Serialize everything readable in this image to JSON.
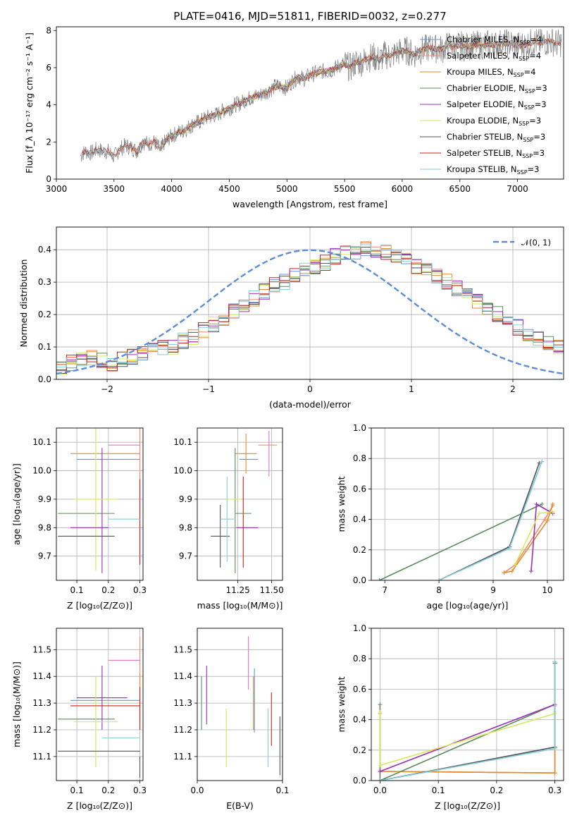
{
  "figure": {
    "title": "PLATE=0416, MJD=51811, FIBERID=0032, z=0.277"
  },
  "colors": {
    "Chabrier MILES": "#6b93d6",
    "Salpeter MILES": "#f28e6e",
    "Kroupa MILES": "#e38b28",
    "Chabrier ELODIE": "#5c8a5c",
    "Salpeter ELODIE": "#9b30b5",
    "Kroupa ELODIE": "#d7e85a",
    "Chabrier STELIB": "#555555",
    "Salpeter STELIB": "#cc1f1f",
    "Kroupa STELIB": "#87ced8",
    "data": "#808080",
    "normal": "#5b8ed6",
    "pink": "#e377c2"
  },
  "chart_data": [
    {
      "id": "spectrum",
      "type": "line",
      "title": "PLATE=0416, MJD=51811, FIBERID=0032, z=0.277",
      "xlabel": "wavelength [Angstrom, rest frame]",
      "ylabel": "Flux [f_λ 10^-17 erg cm^-2 s^-1 A^-1]",
      "xlim": [
        3000,
        7400
      ],
      "ylim": [
        0,
        8.2
      ],
      "xticks": [
        "3000",
        "3500",
        "4000",
        "4500",
        "5000",
        "5500",
        "6000",
        "6500",
        "7000"
      ],
      "yticks": [
        "0",
        "2",
        "4",
        "6",
        "8"
      ],
      "grid": false,
      "legend_position": "upper-right",
      "legend": [
        {
          "label": "Chabrier MILES, N",
          "sub": "SSP",
          "suffix": "=4"
        },
        {
          "label": "Salpeter MILES, N",
          "sub": "SSP",
          "suffix": "=4"
        },
        {
          "label": "Kroupa MILES, N",
          "sub": "SSP",
          "suffix": "=4"
        },
        {
          "label": "Chabrier ELODIE, N",
          "sub": "SSP",
          "suffix": "=3"
        },
        {
          "label": "Salpeter ELODIE, N",
          "sub": "SSP",
          "suffix": "=3"
        },
        {
          "label": "Kroupa ELODIE, N",
          "sub": "SSP",
          "suffix": "=3"
        },
        {
          "label": "Chabrier STELIB, N",
          "sub": "SSP",
          "suffix": "=3"
        },
        {
          "label": "Salpeter STELIB, N",
          "sub": "SSP",
          "suffix": "=3"
        },
        {
          "label": "Kroupa STELIB, N",
          "sub": "SSP",
          "suffix": "=3"
        }
      ],
      "data_x": [
        3200,
        3250,
        3300,
        3350,
        3400,
        3450,
        3500,
        3550,
        3600,
        3650,
        3700,
        3750,
        3800,
        3850,
        3900,
        3950,
        4000,
        4050,
        4100,
        4150,
        4200,
        4250,
        4300,
        4350,
        4400,
        4450,
        4500,
        4550,
        4600,
        4650,
        4700,
        4750,
        4800,
        4850,
        4900,
        4950,
        5000,
        5050,
        5100,
        5150,
        5200,
        5250,
        5300,
        5350,
        5400,
        5450,
        5500,
        5550,
        5600,
        5650,
        5700,
        5750,
        5800,
        5850,
        5900,
        5950,
        6000,
        6050,
        6100,
        6150,
        6200,
        6250,
        6300,
        6350,
        6400,
        6450,
        6500,
        6550,
        6600,
        6650,
        6700,
        6750,
        6800,
        6850,
        6900,
        6950,
        7000,
        7050,
        7100,
        7150,
        7200,
        7250,
        7300,
        7350,
        7400
      ],
      "data_y": [
        1.2,
        1.5,
        1.4,
        1.6,
        1.5,
        1.5,
        1.2,
        1.6,
        1.8,
        1.7,
        1.5,
        2.0,
        1.9,
        2.0,
        1.6,
        2.1,
        2.3,
        2.5,
        2.6,
        2.8,
        3.0,
        3.1,
        3.3,
        3.4,
        3.5,
        3.7,
        3.8,
        4.0,
        4.1,
        4.3,
        4.4,
        4.5,
        4.6,
        4.8,
        5.0,
        5.0,
        4.9,
        5.3,
        5.5,
        5.4,
        5.6,
        5.7,
        5.8,
        5.8,
        5.9,
        6.1,
        6.2,
        6.0,
        6.3,
        6.3,
        6.5,
        6.6,
        6.4,
        6.7,
        6.6,
        6.8,
        6.9,
        6.9,
        6.7,
        6.9,
        7.0,
        7.1,
        7.0,
        7.0,
        7.2,
        7.1,
        7.2,
        7.1,
        7.2,
        7.2,
        7.2,
        7.3,
        7.2,
        7.3,
        7.3,
        7.3,
        7.2,
        7.2,
        7.3,
        7.4,
        7.3,
        7.4,
        7.4,
        7.3,
        7.4
      ]
    },
    {
      "id": "residuals",
      "type": "line",
      "xlabel": "(data-model)/error",
      "ylabel": "Normed distribution",
      "xlim": [
        -2.5,
        2.5
      ],
      "ylim": [
        0,
        0.47
      ],
      "xticks": [
        "−2",
        "−1",
        "0",
        "1",
        "2"
      ],
      "yticks": [
        "0.0",
        "0.1",
        "0.2",
        "0.3",
        "0.4"
      ],
      "grid": true,
      "legend_position": "upper-right",
      "legend_label": "𝒩(0, 1)",
      "bin_width": 0.1,
      "bin_start": -2.5,
      "hist_values": [
        0.04,
        0.05,
        0.06,
        0.07,
        0.06,
        0.05,
        0.06,
        0.07,
        0.08,
        0.09,
        0.1,
        0.1,
        0.12,
        0.13,
        0.15,
        0.17,
        0.19,
        0.21,
        0.23,
        0.25,
        0.27,
        0.29,
        0.3,
        0.32,
        0.34,
        0.35,
        0.36,
        0.38,
        0.39,
        0.39,
        0.4,
        0.39,
        0.39,
        0.38,
        0.37,
        0.35,
        0.34,
        0.32,
        0.3,
        0.28,
        0.26,
        0.24,
        0.22,
        0.2,
        0.18,
        0.16,
        0.14,
        0.13,
        0.11,
        0.1,
        0.09
      ]
    },
    {
      "id": "age-vs-Z",
      "type": "scatter",
      "xlabel": "Z [log10(Z/Z⊙)]",
      "ylabel": "age [log10(age/yr)]",
      "xlim": [
        0.035,
        0.31
      ],
      "ylim": [
        9.615,
        10.15
      ],
      "xticks": [
        "0.1",
        "0.2",
        "0.3"
      ],
      "yticks": [
        "9.7",
        "9.8",
        "9.9",
        "10.0",
        "10.1"
      ],
      "grid": true,
      "points": [
        {
          "series": "Chabrier MILES",
          "x": 0.2,
          "y": 10.04,
          "xerr": 0.1,
          "yerr": 0.0
        },
        {
          "series": "Salpeter MILES",
          "x": 0.3,
          "y": 10.05,
          "xerr": 0.0,
          "yerr": 0.1
        },
        {
          "series": "Kroupa MILES",
          "x": 0.19,
          "y": 10.06,
          "xerr": 0.11,
          "yerr": 0.0
        },
        {
          "series": "Chabrier ELODIE",
          "x": 0.13,
          "y": 9.85,
          "xerr": 0.09,
          "yerr": 0.0
        },
        {
          "series": "Salpeter ELODIE",
          "x": 0.18,
          "y": 9.86,
          "xerr": 0.0,
          "yerr": 0.22
        },
        {
          "series": "Kroupa ELODIE",
          "x": 0.16,
          "y": 9.9,
          "xerr": 0.07,
          "yerr": 0.25
        },
        {
          "series": "Chabrier STELIB",
          "x": 0.13,
          "y": 9.77,
          "xerr": 0.09,
          "yerr": 0.0
        },
        {
          "series": "Salpeter STELIB",
          "x": 0.3,
          "y": 9.82,
          "xerr": 0.0,
          "yerr": 0.15
        },
        {
          "series": "Kroupa STELIB",
          "x": 0.25,
          "y": 9.83,
          "xerr": 0.05,
          "yerr": 0.0
        },
        {
          "series": "Salpeter ELODIE",
          "x": 0.14,
          "y": 9.8,
          "xerr": 0.06,
          "yerr": 0.0
        },
        {
          "series": "pink",
          "x": 0.25,
          "y": 10.09,
          "xerr": 0.05,
          "yerr": 0.0
        }
      ]
    },
    {
      "id": "age-vs-mass",
      "type": "scatter",
      "xlabel": "mass [log10(M/M⊙)]",
      "ylabel": "",
      "xlim": [
        10.95,
        11.58
      ],
      "ylim": [
        9.615,
        10.15
      ],
      "xticks": [
        "11.25",
        "11.50"
      ],
      "yticks": [
        "9.7",
        "9.8",
        "9.9",
        "10.0",
        "10.1"
      ],
      "grid": true,
      "points": [
        {
          "series": "Chabrier MILES",
          "x": 11.33,
          "y": 10.04,
          "xerr": 0.07,
          "yerr": 0.0
        },
        {
          "series": "Salpeter MILES",
          "x": 11.47,
          "y": 10.09,
          "xerr": 0.07,
          "yerr": 0.0
        },
        {
          "series": "Kroupa MILES",
          "x": 11.31,
          "y": 10.06,
          "xerr": 0.08,
          "yerr": 0.07
        },
        {
          "series": "Chabrier ELODIE",
          "x": 11.23,
          "y": 9.86,
          "xerr": 0.0,
          "yerr": 0.22
        },
        {
          "series": "Salpeter ELODIE",
          "x": 11.32,
          "y": 9.8,
          "xerr": 0.08,
          "yerr": 0.0
        },
        {
          "series": "Kroupa ELODIE",
          "x": 11.22,
          "y": 9.9,
          "xerr": 0.05,
          "yerr": 0.0
        },
        {
          "series": "Chabrier STELIB",
          "x": 11.12,
          "y": 9.77,
          "xerr": 0.07,
          "yerr": 0.11
        },
        {
          "series": "Salpeter STELIB",
          "x": 11.29,
          "y": 9.82,
          "xerr": 0.0,
          "yerr": 0.16
        },
        {
          "series": "Kroupa STELIB",
          "x": 11.17,
          "y": 9.83,
          "xerr": 0.05,
          "yerr": 0.15
        },
        {
          "series": "Chabrier ELODIE",
          "x": 11.29,
          "y": 9.85,
          "xerr": 0.06,
          "yerr": 0.0
        },
        {
          "series": "pink",
          "x": 11.48,
          "y": 10.06,
          "xerr": 0.0,
          "yerr": 0.08
        }
      ]
    },
    {
      "id": "weight-vs-age",
      "type": "line",
      "xlabel": "age [log10(age/yr)]",
      "ylabel": "mass weight",
      "xlim": [
        6.75,
        10.3
      ],
      "ylim": [
        0,
        1
      ],
      "xticks": [
        "7",
        "8",
        "9",
        "10"
      ],
      "yticks": [
        "0.0",
        "0.2",
        "0.4",
        "0.6",
        "0.8",
        "1.0"
      ],
      "grid": true,
      "series": [
        {
          "name": "Chabrier MILES",
          "x": [
            8.0,
            9.3,
            9.9
          ],
          "y": [
            0.0,
            0.22,
            0.78
          ]
        },
        {
          "name": "Salpeter MILES",
          "x": [
            9.2,
            9.4,
            9.95,
            10.1
          ],
          "y": [
            0.05,
            0.1,
            0.4,
            0.49
          ]
        },
        {
          "name": "Kroupa MILES",
          "x": [
            9.2,
            9.35,
            10.0,
            10.1
          ],
          "y": [
            0.05,
            0.06,
            0.39,
            0.5
          ]
        },
        {
          "name": "Chabrier ELODIE",
          "x": [
            6.9,
            9.9
          ],
          "y": [
            0.0,
            0.5
          ]
        },
        {
          "name": "Salpeter ELODIE",
          "x": [
            9.7,
            9.8,
            10.1
          ],
          "y": [
            0.06,
            0.5,
            0.44
          ]
        },
        {
          "name": "Kroupa ELODIE",
          "x": [
            9.4,
            9.85,
            10.1
          ],
          "y": [
            0.1,
            0.44,
            0.45
          ]
        },
        {
          "name": "Chabrier STELIB",
          "x": [
            8.0,
            9.3,
            9.85
          ],
          "y": [
            0.0,
            0.22,
            0.77
          ]
        },
        {
          "name": "Kroupa STELIB",
          "x": [
            8.0,
            9.3,
            9.9
          ],
          "y": [
            0.0,
            0.21,
            0.78
          ]
        }
      ]
    },
    {
      "id": "mass-vs-Z",
      "type": "scatter",
      "xlabel": "Z [log10(Z/Z⊙)]",
      "ylabel": "mass [log10(M/M⊙)]",
      "xlim": [
        0.035,
        0.31
      ],
      "ylim": [
        11.01,
        11.58
      ],
      "xticks": [
        "0.1",
        "0.2",
        "0.3"
      ],
      "yticks": [
        "11.1",
        "11.2",
        "11.3",
        "11.4",
        "11.5"
      ],
      "grid": true,
      "points": [
        {
          "series": "Chabrier MILES",
          "x": 0.19,
          "y": 11.31,
          "xerr": 0.11,
          "yerr": 0.0
        },
        {
          "series": "Salpeter MILES",
          "x": 0.3,
          "y": 11.45,
          "xerr": 0.0,
          "yerr": 0.1
        },
        {
          "series": "Kroupa MILES",
          "x": 0.3,
          "y": 11.31,
          "xerr": 0.0,
          "yerr": 0.1
        },
        {
          "series": "Chabrier ELODIE",
          "x": 0.13,
          "y": 11.24,
          "xerr": 0.09,
          "yerr": 0.0
        },
        {
          "series": "Salpeter ELODIE",
          "x": 0.18,
          "y": 11.32,
          "xerr": 0.08,
          "yerr": 0.12
        },
        {
          "series": "Kroupa ELODIE",
          "x": 0.16,
          "y": 11.23,
          "xerr": 0.07,
          "yerr": 0.17
        },
        {
          "series": "Chabrier STELIB",
          "x": 0.17,
          "y": 11.12,
          "xerr": 0.13,
          "yerr": 0.0
        },
        {
          "series": "Salpeter STELIB",
          "x": 0.19,
          "y": 11.29,
          "xerr": 0.11,
          "yerr": 0.0
        },
        {
          "series": "Kroupa STELIB",
          "x": 0.24,
          "y": 11.17,
          "xerr": 0.06,
          "yerr": 0.0
        },
        {
          "series": "Salpeter STELIB",
          "x": 0.3,
          "y": 11.28,
          "xerr": 0.0,
          "yerr": 0.08
        },
        {
          "series": "pink",
          "x": 0.25,
          "y": 11.46,
          "xerr": 0.05,
          "yerr": 0.0
        },
        {
          "series": "Chabrier STELIB",
          "x": 0.3,
          "y": 11.06,
          "xerr": 0.0,
          "yerr": 0.04
        }
      ]
    },
    {
      "id": "mass-vs-EBV",
      "type": "scatter",
      "xlabel": "E(B-V)",
      "ylabel": "",
      "xlim": [
        0,
        0.1
      ],
      "ylim": [
        11.01,
        11.58
      ],
      "xticks": [
        "0.0",
        "0.1"
      ],
      "yticks": [
        "11.1",
        "11.2",
        "11.3",
        "11.4",
        "11.5"
      ],
      "grid": true,
      "points": [
        {
          "series": "Chabrier ELODIE",
          "x": 0.005,
          "y": 11.3,
          "xerr": 0,
          "yerr": 0.1
        },
        {
          "series": "Salpeter ELODIE",
          "x": 0.011,
          "y": 11.33,
          "xerr": 0,
          "yerr": 0.11
        },
        {
          "series": "Kroupa ELODIE",
          "x": 0.034,
          "y": 11.17,
          "xerr": 0,
          "yerr": 0.11
        },
        {
          "series": "pink",
          "x": 0.06,
          "y": 11.45,
          "xerr": 0,
          "yerr": 0.1
        },
        {
          "series": "Chabrier MILES",
          "x": 0.067,
          "y": 11.31,
          "xerr": 0,
          "yerr": 0.12
        },
        {
          "series": "Kroupa MILES",
          "x": 0.066,
          "y": 11.3,
          "xerr": 0,
          "yerr": 0.1
        },
        {
          "series": "Kroupa STELIB",
          "x": 0.083,
          "y": 11.17,
          "xerr": 0,
          "yerr": 0.11
        },
        {
          "series": "Salpeter STELIB",
          "x": 0.087,
          "y": 11.24,
          "xerr": 0,
          "yerr": 0.1
        },
        {
          "series": "Chabrier STELIB",
          "x": 0.097,
          "y": 11.14,
          "xerr": 0,
          "yerr": 0.11
        }
      ]
    },
    {
      "id": "weight-vs-Z",
      "type": "line",
      "xlabel": "Z [log10(Z/Z⊙)]",
      "ylabel": "mass weight",
      "xlim": [
        -0.015,
        0.315
      ],
      "ylim": [
        0,
        1
      ],
      "xticks": [
        "0.0",
        "0.1",
        "0.2",
        "0.3"
      ],
      "yticks": [
        "0.0",
        "0.2",
        "0.4",
        "0.6",
        "0.8",
        "1.0"
      ],
      "grid": true,
      "series": [
        {
          "name": "Chabrier MILES",
          "x": [
            0.0,
            0.3,
            0.3
          ],
          "y": [
            0.0,
            0.22,
            0.78
          ]
        },
        {
          "name": "Salpeter MILES",
          "x": [
            0.0,
            0.0,
            0.3,
            0.3
          ],
          "y": [
            0.44,
            0.06,
            0.05,
            0.49
          ]
        },
        {
          "name": "Kroupa MILES",
          "x": [
            0.0,
            0.3,
            0.3
          ],
          "y": [
            0.06,
            0.05,
            0.5
          ]
        },
        {
          "name": "Chabrier ELODIE",
          "x": [
            0.0,
            0.0,
            0.3
          ],
          "y": [
            0.5,
            0.0,
            0.5
          ]
        },
        {
          "name": "Salpeter ELODIE",
          "x": [
            0.0,
            0.3,
            0.3
          ],
          "y": [
            0.06,
            0.5,
            0.44
          ]
        },
        {
          "name": "Kroupa ELODIE",
          "x": [
            0.0,
            0.0,
            0.3,
            0.3
          ],
          "y": [
            0.45,
            0.1,
            0.44,
            0.45
          ]
        },
        {
          "name": "Chabrier STELIB",
          "x": [
            0.0,
            0.3,
            0.3
          ],
          "y": [
            0.0,
            0.22,
            0.77
          ]
        },
        {
          "name": "Kroupa STELIB",
          "x": [
            0.0,
            0.3,
            0.3
          ],
          "y": [
            0.0,
            0.21,
            0.78
          ]
        }
      ]
    }
  ]
}
